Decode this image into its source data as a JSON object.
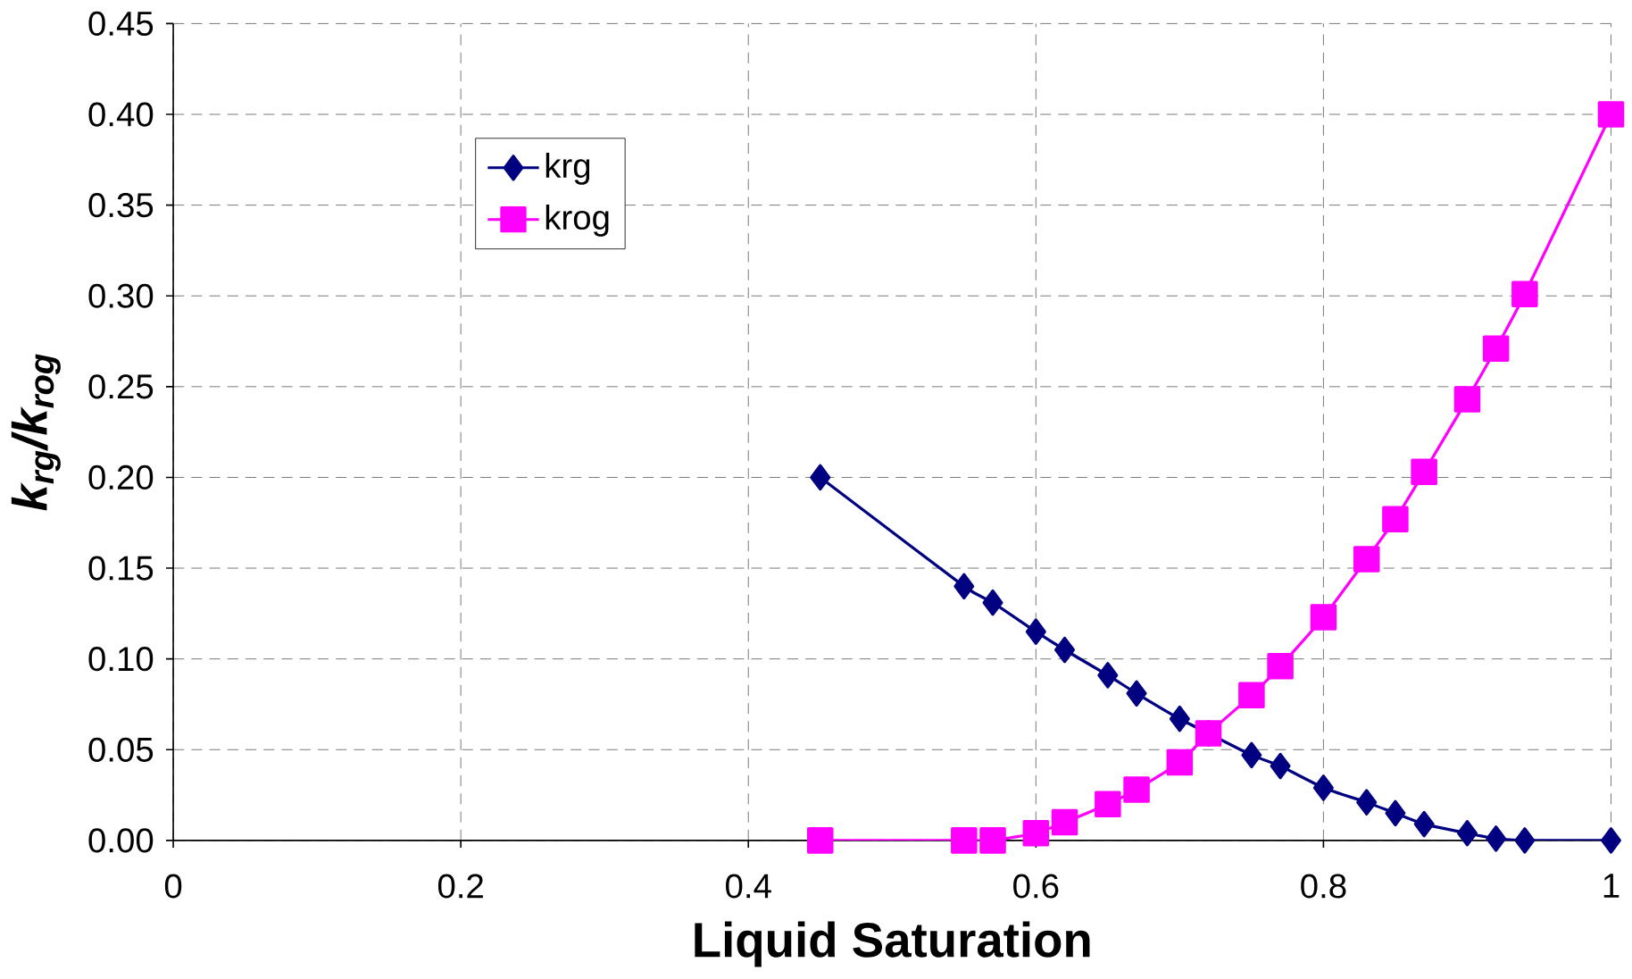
{
  "chart_data": {
    "type": "line",
    "xlabel": "Liquid Saturation",
    "ylabel": "k$_{rg}$/k$_{rog}$",
    "x": [
      0.45,
      0.55,
      0.57,
      0.6,
      0.62,
      0.65,
      0.67,
      0.7,
      0.72,
      0.75,
      0.77,
      0.8,
      0.83,
      0.85,
      0.87,
      0.9,
      0.92,
      0.94,
      1.0
    ],
    "series": [
      {
        "name": "krg",
        "color": "#000080",
        "marker": "diamond",
        "values": [
          0.2,
          0.14,
          0.131,
          0.115,
          0.105,
          0.091,
          0.081,
          0.067,
          0.059,
          0.047,
          0.041,
          0.029,
          0.021,
          0.015,
          0.009,
          0.004,
          0.001,
          0.0,
          0.0
        ]
      },
      {
        "name": "krog",
        "color": "#ff00ff",
        "marker": "square",
        "values": [
          0.0,
          0.0,
          0.0,
          0.004,
          0.01,
          0.02,
          0.028,
          0.043,
          0.059,
          0.08,
          0.096,
          0.123,
          0.155,
          0.177,
          0.203,
          0.243,
          0.271,
          0.301,
          0.4
        ]
      }
    ],
    "xlim": [
      0,
      1
    ],
    "xticks": [
      0,
      0.2,
      0.4,
      0.6,
      0.8,
      1
    ],
    "ylim": [
      0,
      0.45
    ],
    "yticks": [
      {
        "value": 0,
        "label": "0.00"
      },
      0.05,
      {
        "value": 0.1,
        "label": "0.10"
      },
      0.15,
      {
        "value": 0.2,
        "label": "0.20"
      },
      0.25,
      {
        "value": 0.3,
        "label": "0.30"
      },
      0.35,
      {
        "value": 0.4,
        "label": "0.40"
      },
      0.45
    ],
    "grid": true,
    "legend": "top left",
    "line_style": "solid"
  }
}
